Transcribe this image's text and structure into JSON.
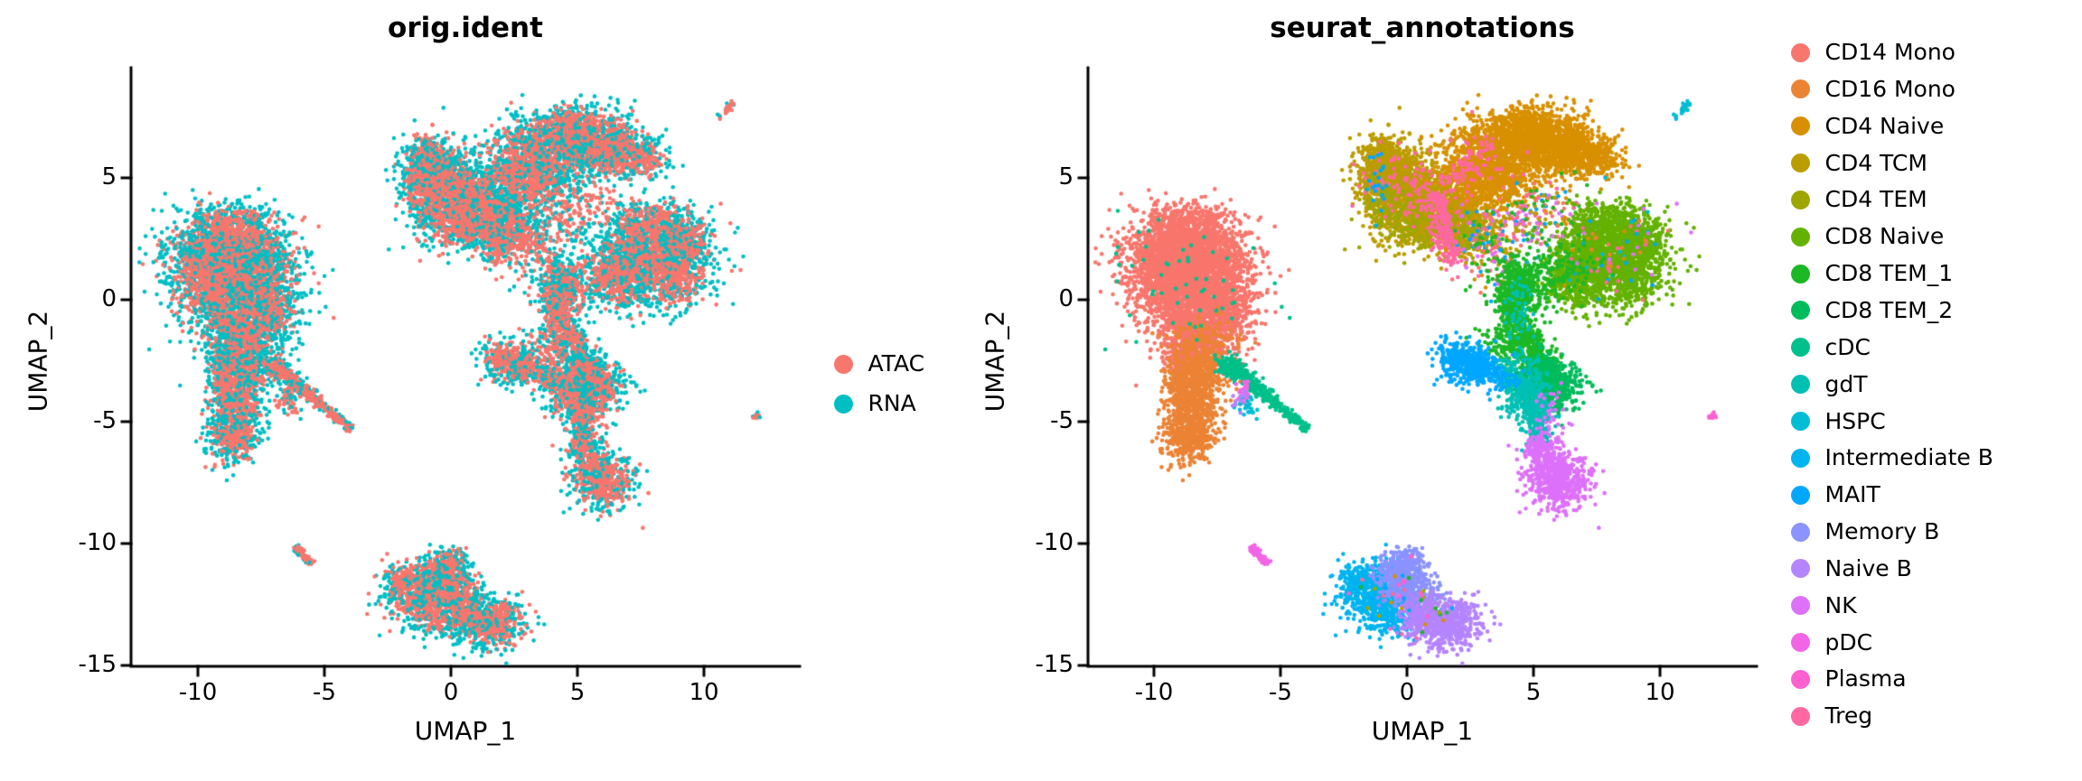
{
  "page": {
    "background": "#ffffff"
  },
  "chart_data": {
    "type": "scatter",
    "description": "Two UMAP embeddings of the same single cells; left colored by assay (orig.ident), right colored by cell-type annotation (seurat_annotations).",
    "panels": [
      {
        "key": "orig.ident",
        "title": "orig.ident",
        "xlabel": "UMAP_1",
        "ylabel": "UMAP_2",
        "xlim": [
          -12.6,
          13.8
        ],
        "ylim": [
          -15.1,
          9.6
        ],
        "xticks": [
          -10,
          -5,
          0,
          5,
          10
        ],
        "xtick_labels": [
          "-10",
          "-5",
          "0",
          "5",
          "10"
        ],
        "yticks": [
          5,
          0,
          -5,
          -10,
          -15
        ],
        "ytick_labels": [
          "5",
          "0",
          "-5",
          "-10",
          "-15"
        ],
        "grid": false,
        "color_by": "assay",
        "legend_position": "right-center",
        "legend": [
          {
            "label": "ATAC",
            "color": "#F8766D"
          },
          {
            "label": "RNA",
            "color": "#00BFC4"
          }
        ]
      },
      {
        "key": "seurat_annotations",
        "title": "seurat_annotations",
        "xlabel": "UMAP_1",
        "ylabel": "UMAP_2",
        "xlim": [
          -12.6,
          13.8
        ],
        "ylim": [
          -15.1,
          9.6
        ],
        "xticks": [
          -10,
          -5,
          0,
          5,
          10
        ],
        "xtick_labels": [
          "-10",
          "-5",
          "0",
          "5",
          "10"
        ],
        "yticks": [
          5,
          0,
          -5,
          -10,
          -15
        ],
        "ytick_labels": [
          "5",
          "0",
          "-5",
          "-10",
          "-15"
        ],
        "grid": false,
        "color_by": "cell_type",
        "legend_position": "right-top",
        "legend": [
          {
            "label": "CD14 Mono",
            "color": "#F8766D"
          },
          {
            "label": "CD16 Mono",
            "color": "#EB8335"
          },
          {
            "label": "CD4 Naive",
            "color": "#D89000"
          },
          {
            "label": "CD4 TCM",
            "color": "#BC9D00"
          },
          {
            "label": "CD4 TEM",
            "color": "#9DA700"
          },
          {
            "label": "CD8 Naive",
            "color": "#64B200"
          },
          {
            "label": "CD8 TEM_1",
            "color": "#1CB826"
          },
          {
            "label": "CD8 TEM_2",
            "color": "#00BC5D"
          },
          {
            "label": "cDC",
            "color": "#00C08B"
          },
          {
            "label": "gdT",
            "color": "#00C0B4"
          },
          {
            "label": "HSPC",
            "color": "#00BDD4"
          },
          {
            "label": "Intermediate B",
            "color": "#00B4EF"
          },
          {
            "label": "MAIT",
            "color": "#00A7FF"
          },
          {
            "label": "Memory B",
            "color": "#8B93FF"
          },
          {
            "label": "Naive B",
            "color": "#B584FF"
          },
          {
            "label": "NK",
            "color": "#DD71FA"
          },
          {
            "label": "pDC",
            "color": "#F265E6"
          },
          {
            "label": "Plasma",
            "color": "#FD61D0"
          },
          {
            "label": "Treg",
            "color": "#FF68A1"
          }
        ]
      }
    ],
    "assay_colors": {
      "ATAC": "#F8766D",
      "RNA": "#00BFC4"
    },
    "clusters": [
      {
        "cell_type": "CD14 Mono",
        "color": "#F8766D",
        "blobs": [
          [
            -8.9,
            1.8,
            1.15,
            0.95,
            1500
          ],
          [
            -7.9,
            0.7,
            0.95,
            0.9,
            950
          ],
          [
            -9.6,
            0.7,
            0.8,
            0.9,
            550
          ],
          [
            -8.3,
            -1.1,
            0.8,
            0.75,
            650
          ],
          [
            -8.5,
            2.9,
            0.95,
            0.5,
            330
          ],
          [
            -7.15,
            -0.3,
            0.55,
            0.75,
            240
          ],
          [
            -8.6,
            -2.3,
            0.5,
            0.5,
            220
          ]
        ]
      },
      {
        "cell_type": "CD16 Mono",
        "color": "#EB8335",
        "blobs": [
          [
            -8.2,
            -2.9,
            0.55,
            0.6,
            320
          ],
          [
            -8.5,
            -4.3,
            0.55,
            0.75,
            480
          ],
          [
            -8.6,
            -5.7,
            0.5,
            0.5,
            360
          ],
          [
            -8.9,
            -3.3,
            0.4,
            0.45,
            140
          ],
          [
            -8.0,
            -1.7,
            0.6,
            0.5,
            120
          ]
        ]
      },
      {
        "cell_type": "cDC",
        "color": "#00C08B",
        "blobs": [
          [
            -7.0,
            -2.7,
            0.28,
            0.22,
            110
          ],
          [
            -8.7,
            0.9,
            1.5,
            1.2,
            55
          ]
        ],
        "streaks": [
          [
            -6.9,
            -2.8,
            -5.5,
            -3.95,
            0.14,
            230
          ],
          [
            -5.5,
            -3.95,
            -3.95,
            -5.35,
            0.1,
            150
          ]
        ]
      },
      {
        "cell_type": "pDC",
        "color": "#F265E6",
        "blobs": [
          [
            -6.42,
            -3.8,
            0.12,
            0.3,
            26
          ]
        ],
        "streaks": [
          [
            -6.15,
            -10.1,
            -5.5,
            -10.85,
            0.09,
            55
          ]
        ]
      },
      {
        "cell_type": "HSPC",
        "color": "#00BDD4",
        "blobs": [
          [
            -6.3,
            -4.4,
            0.22,
            0.16,
            22
          ],
          [
            10.6,
            7.5,
            0.05,
            0.05,
            4
          ]
        ],
        "streaks": [
          [
            10.8,
            7.7,
            11.15,
            8.1,
            0.08,
            22
          ]
        ]
      },
      {
        "cell_type": "CD4 TCM",
        "color": "#BC9D00",
        "blobs": [
          [
            -0.95,
            5.7,
            0.45,
            0.55,
            320
          ],
          [
            -0.35,
            4.7,
            0.75,
            0.8,
            650
          ],
          [
            0.8,
            3.95,
            0.9,
            0.8,
            750
          ],
          [
            1.95,
            3.3,
            0.8,
            0.6,
            420
          ],
          [
            -1.25,
            4.7,
            0.4,
            0.55,
            180
          ],
          [
            0.2,
            2.9,
            0.7,
            0.4,
            150
          ]
        ]
      },
      {
        "cell_type": "CD4 TEM",
        "color": "#9DA700",
        "blobs": [
          [
            0.7,
            3.05,
            1.1,
            0.5,
            200
          ],
          [
            2.4,
            2.6,
            0.7,
            0.45,
            110
          ],
          [
            -0.8,
            4.0,
            0.5,
            0.5,
            70
          ]
        ]
      },
      {
        "cell_type": "CD4 Naive",
        "color": "#D89000",
        "blobs": [
          [
            2.85,
            5.45,
            0.8,
            0.75,
            560
          ],
          [
            4.0,
            6.2,
            1.0,
            0.75,
            850
          ],
          [
            5.4,
            6.5,
            0.9,
            0.6,
            650
          ],
          [
            6.6,
            6.1,
            0.7,
            0.55,
            380
          ],
          [
            7.65,
            5.8,
            0.5,
            0.4,
            170
          ],
          [
            3.35,
            4.6,
            0.7,
            0.5,
            230
          ],
          [
            5.0,
            7.3,
            0.85,
            0.4,
            190
          ]
        ]
      },
      {
        "cell_type": "Treg",
        "color": "#FF68A1",
        "blobs": [
          [
            0.45,
            4.3,
            0.5,
            0.6,
            60
          ],
          [
            2.6,
            5.6,
            0.95,
            0.85,
            55
          ],
          [
            -0.9,
            5.0,
            0.5,
            0.6,
            35
          ],
          [
            1.5,
            2.8,
            0.5,
            0.4,
            35
          ]
        ],
        "streaks": [
          [
            1.15,
            4.45,
            1.85,
            1.45,
            0.2,
            185
          ],
          [
            1.5,
            4.6,
            3.4,
            6.4,
            0.25,
            45
          ]
        ]
      },
      {
        "cell_type": "mixed",
        "color": "#D89000",
        "palette": [
          "#D89000",
          "#BC9D00",
          "#FF68A1",
          "#1CB826",
          "#F8766D",
          "#00A7FF",
          "#DD71FA"
        ],
        "blobs": [
          [
            3.1,
            2.3,
            0.75,
            0.9,
            190
          ],
          [
            4.6,
            3.3,
            0.7,
            0.7,
            110
          ],
          [
            5.8,
            3.8,
            0.6,
            0.5,
            80
          ]
        ]
      },
      {
        "cell_type": "CD8 Naive",
        "color": "#64B200",
        "blobs": [
          [
            8.1,
            2.1,
            1.0,
            0.85,
            850
          ],
          [
            7.2,
            1.3,
            0.8,
            0.8,
            520
          ],
          [
            8.9,
            1.0,
            0.75,
            0.7,
            430
          ],
          [
            7.9,
            3.1,
            0.7,
            0.5,
            280
          ],
          [
            9.35,
            2.4,
            0.5,
            0.5,
            190
          ],
          [
            6.45,
            0.7,
            0.5,
            0.55,
            170
          ]
        ]
      },
      {
        "cell_type": "mixed",
        "color": "#F8766D",
        "palette": [
          "#F8766D",
          "#D89000",
          "#FF68A1",
          "#00BDD4",
          "#DD71FA",
          "#EB8335",
          "#00A7FF"
        ],
        "blobs": [
          [
            8.0,
            1.8,
            1.25,
            1.0,
            80
          ]
        ]
      },
      {
        "cell_type": "CD8 TEM_1",
        "color": "#1CB826",
        "blobs": [
          [
            4.35,
            0.9,
            0.4,
            0.5,
            190
          ],
          [
            4.15,
            -0.1,
            0.35,
            0.55,
            190
          ],
          [
            4.35,
            -1.1,
            0.35,
            0.5,
            170
          ],
          [
            4.8,
            -1.9,
            0.4,
            0.45,
            150
          ],
          [
            5.3,
            -2.6,
            0.35,
            0.35,
            110
          ],
          [
            5.9,
            1.2,
            0.85,
            0.6,
            140
          ],
          [
            3.6,
            -1.9,
            0.45,
            0.4,
            80
          ],
          [
            4.9,
            0.3,
            0.5,
            0.5,
            90
          ]
        ]
      },
      {
        "cell_type": "CD8 TEM_2",
        "color": "#00BC5D",
        "blobs": [
          [
            5.75,
            -3.5,
            0.55,
            0.5,
            520
          ],
          [
            5.05,
            -3.05,
            0.4,
            0.4,
            140
          ]
        ]
      },
      {
        "cell_type": "gdT",
        "color": "#00C0B4",
        "blobs": [
          [
            4.6,
            -3.75,
            0.5,
            0.55,
            280
          ],
          [
            5.1,
            -4.7,
            0.3,
            0.45,
            170
          ],
          [
            5.25,
            -5.5,
            0.2,
            0.28,
            80
          ],
          [
            4.05,
            -2.95,
            0.4,
            0.4,
            80
          ],
          [
            4.45,
            -0.6,
            0.3,
            0.9,
            55
          ]
        ]
      },
      {
        "cell_type": "MAIT",
        "color": "#00A7FF",
        "blobs": [
          [
            2.3,
            -2.55,
            0.5,
            0.4,
            290
          ],
          [
            3.1,
            -2.9,
            0.4,
            0.3,
            110
          ],
          [
            1.8,
            -2.25,
            0.28,
            0.28,
            60
          ],
          [
            3.75,
            -3.3,
            0.5,
            0.3,
            35
          ],
          [
            -1.15,
            4.9,
            0.22,
            0.8,
            22
          ]
        ]
      },
      {
        "cell_type": "NK",
        "color": "#DD71FA",
        "blobs": [
          [
            5.95,
            -7.45,
            0.62,
            0.55,
            520
          ],
          [
            5.5,
            -6.5,
            0.42,
            0.42,
            140
          ],
          [
            5.2,
            -5.9,
            0.25,
            0.25,
            55
          ],
          [
            5.6,
            -4.7,
            0.3,
            0.55,
            35
          ]
        ]
      },
      {
        "cell_type": "Intermediate B",
        "color": "#00B4EF",
        "blobs": [
          [
            -1.35,
            -12.0,
            0.65,
            0.7,
            480
          ],
          [
            -0.5,
            -12.9,
            0.55,
            0.45,
            240
          ],
          [
            -2.0,
            -11.6,
            0.3,
            0.4,
            90
          ]
        ]
      },
      {
        "cell_type": "Memory B",
        "color": "#8B93FF",
        "blobs": [
          [
            -0.3,
            -11.2,
            0.5,
            0.45,
            270
          ],
          [
            0.1,
            -10.75,
            0.27,
            0.38,
            90
          ],
          [
            0.35,
            -12.1,
            0.55,
            0.5,
            210
          ]
        ]
      },
      {
        "cell_type": "Naive B",
        "color": "#B584FF",
        "blobs": [
          [
            1.5,
            -13.3,
            0.7,
            0.5,
            480
          ],
          [
            0.65,
            -12.9,
            0.45,
            0.4,
            170
          ],
          [
            2.1,
            -12.75,
            0.32,
            0.3,
            60
          ],
          [
            -6.6,
            -4.1,
            0.18,
            0.28,
            14
          ]
        ]
      },
      {
        "cell_type": "Plasma",
        "color": "#FD61D0",
        "blobs": [
          [
            12.15,
            -4.75,
            0.1,
            0.07,
            8
          ],
          [
            -0.15,
            -11.55,
            0.05,
            0.05,
            3
          ]
        ]
      },
      {
        "cell_type": "mixed",
        "color": "#FD61D0",
        "palette": [
          "#FD61D0",
          "#D89000",
          "#1CB826",
          "#9DA700",
          "#00A7FF",
          "#FF68A1"
        ],
        "blobs": [
          [
            -0.4,
            -12.2,
            0.9,
            0.8,
            40
          ]
        ]
      }
    ]
  }
}
